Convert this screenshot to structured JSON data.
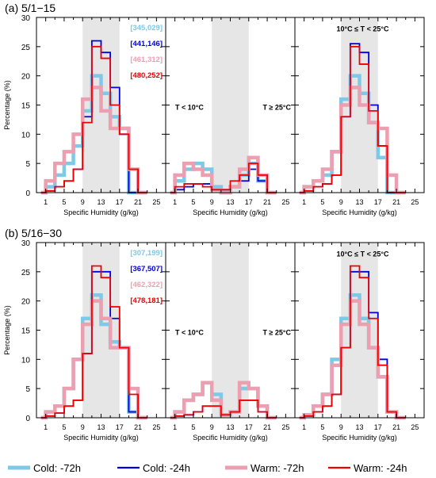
{
  "figure": {
    "ylabel": "Percentage (%)",
    "xlabel": "Specific Humidity (g/kg)",
    "xticks": [
      1,
      5,
      9,
      13,
      17,
      21,
      25
    ],
    "yticks": [
      0,
      5,
      10,
      15,
      20,
      25,
      30
    ],
    "shaded_range": [
      9,
      17
    ],
    "legend": [
      {
        "name": "Cold: -72h",
        "color": "#7ec8e8",
        "width": "thick"
      },
      {
        "name": "Cold: -24h",
        "color": "#0000dd",
        "width": "thin"
      },
      {
        "name": "Warm: -72h",
        "color": "#ec9fb1",
        "width": "thick"
      },
      {
        "name": "Warm: -24h",
        "color": "#ee0000",
        "width": "thin"
      }
    ]
  },
  "chart_data": [
    {
      "type": "line",
      "title": "(a) 5/1−15",
      "xlabel": "Specific Humidity (g/kg)",
      "ylabel": "Percentage (%)",
      "xlim": [
        -1,
        27
      ],
      "ylim": [
        0,
        30
      ],
      "bin_edges": [
        0,
        1,
        3,
        5,
        7,
        9,
        11,
        13,
        15,
        17,
        19,
        21,
        23
      ],
      "sample_counts": [
        "[345,029]",
        "[441,146]",
        "[461,312]",
        "[480,252]"
      ],
      "panels": [
        {
          "label": "",
          "series": [
            {
              "name": "Cold: -72h",
              "values": [
                0,
                1,
                3,
                5,
                8,
                14,
                20,
                17,
                13,
                11,
                0,
                0
              ]
            },
            {
              "name": "Cold: -24h",
              "values": [
                0,
                0.3,
                1,
                2,
                4,
                13,
                26,
                24,
                18,
                10,
                0,
                0
              ]
            },
            {
              "name": "Warm: -72h",
              "values": [
                0,
                2,
                5,
                7,
                10,
                16,
                18,
                14,
                11,
                11,
                4,
                0
              ]
            },
            {
              "name": "Warm: -24h",
              "values": [
                0,
                0.3,
                1,
                2,
                4,
                12,
                25,
                23,
                15,
                10,
                4,
                0
              ]
            }
          ]
        },
        {
          "label": "",
          "labels": [
            "T < 10°C",
            "T ≥ 25°C"
          ],
          "series": [
            {
              "name": "Cold: -72h",
              "values": [
                0,
                2,
                4,
                5,
                4,
                1,
                0,
                1,
                3,
                5,
                2,
                0
              ]
            },
            {
              "name": "Cold: -24h",
              "values": [
                0,
                0.5,
                1,
                1.5,
                1.5,
                0.5,
                0.5,
                1,
                2,
                4,
                2,
                0
              ]
            },
            {
              "name": "Warm: -72h",
              "values": [
                0,
                3,
                5,
                4,
                3,
                0.5,
                0,
                1,
                4,
                6,
                3,
                0
              ]
            },
            {
              "name": "Warm: -24h",
              "values": [
                0,
                1,
                1.5,
                1.5,
                1,
                0.5,
                0.5,
                2,
                3,
                5,
                3,
                0
              ]
            }
          ]
        },
        {
          "label": "10°C ≤ T < 25°C",
          "series": [
            {
              "name": "Cold: -72h",
              "values": [
                0,
                1,
                2,
                3,
                7,
                16,
                20,
                17,
                12,
                6,
                0,
                0
              ]
            },
            {
              "name": "Cold: -24h",
              "values": [
                0,
                0.3,
                1,
                1.5,
                3,
                13,
                25.5,
                24,
                15,
                8,
                0,
                0
              ]
            },
            {
              "name": "Warm: -72h",
              "values": [
                0,
                1,
                2,
                4,
                7,
                15,
                18,
                15,
                12,
                11,
                3,
                0
              ]
            },
            {
              "name": "Warm: -24h",
              "values": [
                0,
                0.3,
                1,
                1.5,
                3,
                13,
                25,
                22,
                14,
                8,
                0,
                0
              ]
            }
          ]
        }
      ]
    },
    {
      "type": "line",
      "title": "(b) 5/16−30",
      "xlabel": "Specific Humidity (g/kg)",
      "ylabel": "Percentage (%)",
      "xlim": [
        -1,
        27
      ],
      "ylim": [
        0,
        30
      ],
      "bin_edges": [
        0,
        1,
        3,
        5,
        7,
        9,
        11,
        13,
        15,
        17,
        19,
        21,
        23
      ],
      "sample_counts": [
        "[307,199]",
        "[367,507]",
        "[462,322]",
        "[478,181]"
      ],
      "panels": [
        {
          "label": "",
          "series": [
            {
              "name": "Cold: -72h",
              "values": [
                0,
                1,
                2,
                5,
                10,
                17,
                21,
                16,
                13,
                12,
                1,
                0
              ]
            },
            {
              "name": "Cold: -24h",
              "values": [
                0,
                0.3,
                0.8,
                2,
                3,
                11,
                25,
                25,
                17,
                12,
                1,
                0
              ]
            },
            {
              "name": "Warm: -72h",
              "values": [
                0,
                1,
                2,
                5,
                10,
                16,
                20,
                17,
                12,
                12,
                5,
                0
              ]
            },
            {
              "name": "Warm: -24h",
              "values": [
                0,
                0.3,
                0.8,
                2,
                3,
                11,
                26,
                24,
                19,
                12,
                4,
                0
              ]
            }
          ]
        },
        {
          "label": "",
          "labels": [
            "T < 10°C",
            "T ≥ 25°C"
          ],
          "series": [
            {
              "name": "Cold: -72h",
              "values": [
                0,
                1,
                3,
                4,
                6,
                4,
                0.5,
                1,
                5,
                5,
                2,
                0
              ]
            },
            {
              "name": "Cold: -24h",
              "values": [
                0,
                0.3,
                0.5,
                1,
                2,
                2,
                0.5,
                1,
                3,
                3,
                1,
                0
              ]
            },
            {
              "name": "Warm: -72h",
              "values": [
                0,
                1,
                3,
                4,
                6,
                3,
                0.5,
                1,
                6,
                5,
                2,
                0
              ]
            },
            {
              "name": "Warm: -24h",
              "values": [
                0,
                0.3,
                0.5,
                1,
                2,
                2,
                0.5,
                1,
                3,
                3,
                1,
                0
              ]
            }
          ]
        },
        {
          "label": "10°C ≤ T < 25°C",
          "series": [
            {
              "name": "Cold: -72h",
              "values": [
                0,
                0.5,
                2,
                4,
                10,
                17,
                21,
                17,
                12,
                7,
                1,
                0
              ]
            },
            {
              "name": "Cold: -24h",
              "values": [
                0,
                0.3,
                1,
                2,
                4,
                12,
                25,
                25,
                18,
                10,
                1,
                0
              ]
            },
            {
              "name": "Warm: -72h",
              "values": [
                0,
                0.5,
                2,
                4,
                9,
                16,
                20,
                16,
                12,
                7,
                1,
                0
              ]
            },
            {
              "name": "Warm: -24h",
              "values": [
                0,
                0.3,
                1,
                2,
                4,
                12,
                26,
                24,
                17,
                9,
                1,
                0
              ]
            }
          ]
        }
      ]
    }
  ]
}
